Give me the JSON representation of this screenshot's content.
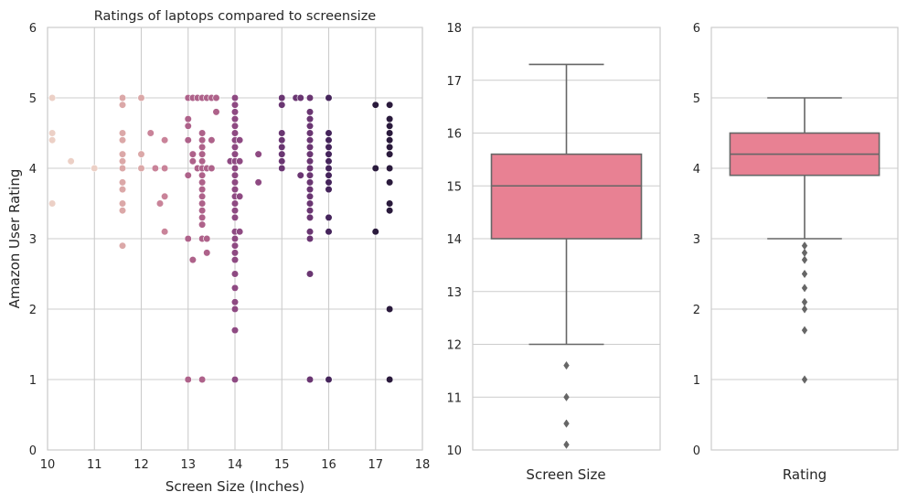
{
  "chart_data": [
    {
      "type": "scatter",
      "title": "Ratings of laptops compared to screensize",
      "xlabel": "Screen Size (Inches)",
      "ylabel": "Amazon User Rating",
      "xlim": [
        10,
        18
      ],
      "ylim": [
        0,
        6
      ],
      "xticks": [
        "10",
        "11",
        "12",
        "13",
        "14",
        "15",
        "16",
        "17",
        "18"
      ],
      "yticks": [
        "0",
        "1",
        "2",
        "3",
        "4",
        "5",
        "6"
      ],
      "grid": true,
      "hue_colors": [
        "#ecd0c6",
        "#dba8a8",
        "#c98399",
        "#ae628a",
        "#8e4a82",
        "#6a3672",
        "#45245b",
        "#2a1a3c"
      ],
      "points": [
        {
          "x": 10.1,
          "y": 5.0,
          "c": 0
        },
        {
          "x": 10.1,
          "y": 4.5,
          "c": 0
        },
        {
          "x": 10.1,
          "y": 4.4,
          "c": 0
        },
        {
          "x": 10.1,
          "y": 3.5,
          "c": 0
        },
        {
          "x": 10.5,
          "y": 4.1,
          "c": 0
        },
        {
          "x": 11.0,
          "y": 4.0,
          "c": 0
        },
        {
          "x": 11.6,
          "y": 5.0,
          "c": 1
        },
        {
          "x": 11.6,
          "y": 4.9,
          "c": 1
        },
        {
          "x": 11.6,
          "y": 4.5,
          "c": 1
        },
        {
          "x": 11.6,
          "y": 4.4,
          "c": 1
        },
        {
          "x": 11.6,
          "y": 4.2,
          "c": 1
        },
        {
          "x": 11.6,
          "y": 4.1,
          "c": 1
        },
        {
          "x": 11.6,
          "y": 4.0,
          "c": 1
        },
        {
          "x": 11.6,
          "y": 3.8,
          "c": 1
        },
        {
          "x": 11.6,
          "y": 3.7,
          "c": 1
        },
        {
          "x": 11.6,
          "y": 3.5,
          "c": 1
        },
        {
          "x": 11.6,
          "y": 3.4,
          "c": 1
        },
        {
          "x": 11.6,
          "y": 2.9,
          "c": 1
        },
        {
          "x": 12.0,
          "y": 5.0,
          "c": 1
        },
        {
          "x": 12.0,
          "y": 4.2,
          "c": 1
        },
        {
          "x": 12.0,
          "y": 4.0,
          "c": 1
        },
        {
          "x": 12.2,
          "y": 4.5,
          "c": 2
        },
        {
          "x": 12.3,
          "y": 4.0,
          "c": 2
        },
        {
          "x": 12.4,
          "y": 3.5,
          "c": 2
        },
        {
          "x": 12.5,
          "y": 4.4,
          "c": 2
        },
        {
          "x": 12.5,
          "y": 4.0,
          "c": 2
        },
        {
          "x": 12.5,
          "y": 3.6,
          "c": 2
        },
        {
          "x": 12.5,
          "y": 3.1,
          "c": 2
        },
        {
          "x": 13.0,
          "y": 5.0,
          "c": 3
        },
        {
          "x": 13.0,
          "y": 4.7,
          "c": 3
        },
        {
          "x": 13.0,
          "y": 4.6,
          "c": 3
        },
        {
          "x": 13.0,
          "y": 4.4,
          "c": 3
        },
        {
          "x": 13.0,
          "y": 3.9,
          "c": 3
        },
        {
          "x": 13.0,
          "y": 3.0,
          "c": 3
        },
        {
          "x": 13.0,
          "y": 1.0,
          "c": 3
        },
        {
          "x": 13.1,
          "y": 5.0,
          "c": 3
        },
        {
          "x": 13.1,
          "y": 4.2,
          "c": 3
        },
        {
          "x": 13.1,
          "y": 4.1,
          "c": 3
        },
        {
          "x": 13.1,
          "y": 2.7,
          "c": 3
        },
        {
          "x": 13.2,
          "y": 5.0,
          "c": 3
        },
        {
          "x": 13.2,
          "y": 4.0,
          "c": 3
        },
        {
          "x": 13.3,
          "y": 5.0,
          "c": 3
        },
        {
          "x": 13.3,
          "y": 4.5,
          "c": 3
        },
        {
          "x": 13.3,
          "y": 4.4,
          "c": 3
        },
        {
          "x": 13.3,
          "y": 4.3,
          "c": 3
        },
        {
          "x": 13.3,
          "y": 4.2,
          "c": 3
        },
        {
          "x": 13.3,
          "y": 4.1,
          "c": 3
        },
        {
          "x": 13.3,
          "y": 4.0,
          "c": 3
        },
        {
          "x": 13.3,
          "y": 3.9,
          "c": 3
        },
        {
          "x": 13.3,
          "y": 3.8,
          "c": 3
        },
        {
          "x": 13.3,
          "y": 3.7,
          "c": 3
        },
        {
          "x": 13.3,
          "y": 3.6,
          "c": 3
        },
        {
          "x": 13.3,
          "y": 3.5,
          "c": 3
        },
        {
          "x": 13.3,
          "y": 3.4,
          "c": 3
        },
        {
          "x": 13.3,
          "y": 3.3,
          "c": 3
        },
        {
          "x": 13.3,
          "y": 3.2,
          "c": 3
        },
        {
          "x": 13.3,
          "y": 3.0,
          "c": 3
        },
        {
          "x": 13.3,
          "y": 1.0,
          "c": 3
        },
        {
          "x": 13.4,
          "y": 5.0,
          "c": 3
        },
        {
          "x": 13.4,
          "y": 4.0,
          "c": 3
        },
        {
          "x": 13.4,
          "y": 3.0,
          "c": 3
        },
        {
          "x": 13.4,
          "y": 2.8,
          "c": 3
        },
        {
          "x": 13.5,
          "y": 5.0,
          "c": 3
        },
        {
          "x": 13.5,
          "y": 4.4,
          "c": 3
        },
        {
          "x": 13.5,
          "y": 4.0,
          "c": 3
        },
        {
          "x": 13.6,
          "y": 5.0,
          "c": 3
        },
        {
          "x": 13.6,
          "y": 4.8,
          "c": 3
        },
        {
          "x": 13.9,
          "y": 4.1,
          "c": 4
        },
        {
          "x": 14.0,
          "y": 5.0,
          "c": 4
        },
        {
          "x": 14.0,
          "y": 4.9,
          "c": 4
        },
        {
          "x": 14.0,
          "y": 4.8,
          "c": 4
        },
        {
          "x": 14.0,
          "y": 4.7,
          "c": 4
        },
        {
          "x": 14.0,
          "y": 4.6,
          "c": 4
        },
        {
          "x": 14.0,
          "y": 4.5,
          "c": 4
        },
        {
          "x": 14.0,
          "y": 4.4,
          "c": 4
        },
        {
          "x": 14.0,
          "y": 4.3,
          "c": 4
        },
        {
          "x": 14.0,
          "y": 4.2,
          "c": 4
        },
        {
          "x": 14.0,
          "y": 4.1,
          "c": 4
        },
        {
          "x": 14.0,
          "y": 4.0,
          "c": 4
        },
        {
          "x": 14.0,
          "y": 3.9,
          "c": 4
        },
        {
          "x": 14.0,
          "y": 3.8,
          "c": 4
        },
        {
          "x": 14.0,
          "y": 3.7,
          "c": 4
        },
        {
          "x": 14.0,
          "y": 3.6,
          "c": 4
        },
        {
          "x": 14.0,
          "y": 3.5,
          "c": 4
        },
        {
          "x": 14.0,
          "y": 3.4,
          "c": 4
        },
        {
          "x": 14.0,
          "y": 3.3,
          "c": 4
        },
        {
          "x": 14.0,
          "y": 3.1,
          "c": 4
        },
        {
          "x": 14.0,
          "y": 3.0,
          "c": 4
        },
        {
          "x": 14.0,
          "y": 2.9,
          "c": 4
        },
        {
          "x": 14.0,
          "y": 2.8,
          "c": 4
        },
        {
          "x": 14.0,
          "y": 2.7,
          "c": 4
        },
        {
          "x": 14.0,
          "y": 2.5,
          "c": 4
        },
        {
          "x": 14.0,
          "y": 2.3,
          "c": 4
        },
        {
          "x": 14.0,
          "y": 2.1,
          "c": 4
        },
        {
          "x": 14.0,
          "y": 2.0,
          "c": 4
        },
        {
          "x": 14.0,
          "y": 1.7,
          "c": 4
        },
        {
          "x": 14.0,
          "y": 1.0,
          "c": 4
        },
        {
          "x": 14.1,
          "y": 4.4,
          "c": 4
        },
        {
          "x": 14.1,
          "y": 4.1,
          "c": 4
        },
        {
          "x": 14.1,
          "y": 3.6,
          "c": 4
        },
        {
          "x": 14.1,
          "y": 3.1,
          "c": 4
        },
        {
          "x": 14.5,
          "y": 4.2,
          "c": 4
        },
        {
          "x": 14.5,
          "y": 3.8,
          "c": 4
        },
        {
          "x": 15.0,
          "y": 5.0,
          "c": 5
        },
        {
          "x": 15.0,
          "y": 4.9,
          "c": 5
        },
        {
          "x": 15.0,
          "y": 4.5,
          "c": 5
        },
        {
          "x": 15.0,
          "y": 4.4,
          "c": 5
        },
        {
          "x": 15.0,
          "y": 4.3,
          "c": 5
        },
        {
          "x": 15.0,
          "y": 4.2,
          "c": 5
        },
        {
          "x": 15.0,
          "y": 4.1,
          "c": 5
        },
        {
          "x": 15.0,
          "y": 4.0,
          "c": 5
        },
        {
          "x": 15.3,
          "y": 5.0,
          "c": 5
        },
        {
          "x": 15.4,
          "y": 5.0,
          "c": 5
        },
        {
          "x": 15.4,
          "y": 3.9,
          "c": 5
        },
        {
          "x": 15.6,
          "y": 5.0,
          "c": 5
        },
        {
          "x": 15.6,
          "y": 4.8,
          "c": 5
        },
        {
          "x": 15.6,
          "y": 4.7,
          "c": 5
        },
        {
          "x": 15.6,
          "y": 4.6,
          "c": 5
        },
        {
          "x": 15.6,
          "y": 4.5,
          "c": 5
        },
        {
          "x": 15.6,
          "y": 4.4,
          "c": 5
        },
        {
          "x": 15.6,
          "y": 4.3,
          "c": 5
        },
        {
          "x": 15.6,
          "y": 4.2,
          "c": 5
        },
        {
          "x": 15.6,
          "y": 4.1,
          "c": 5
        },
        {
          "x": 15.6,
          "y": 4.0,
          "c": 5
        },
        {
          "x": 15.6,
          "y": 3.9,
          "c": 5
        },
        {
          "x": 15.6,
          "y": 3.8,
          "c": 5
        },
        {
          "x": 15.6,
          "y": 3.7,
          "c": 5
        },
        {
          "x": 15.6,
          "y": 3.6,
          "c": 5
        },
        {
          "x": 15.6,
          "y": 3.5,
          "c": 5
        },
        {
          "x": 15.6,
          "y": 3.4,
          "c": 5
        },
        {
          "x": 15.6,
          "y": 3.3,
          "c": 5
        },
        {
          "x": 15.6,
          "y": 3.1,
          "c": 5
        },
        {
          "x": 15.6,
          "y": 3.0,
          "c": 5
        },
        {
          "x": 15.6,
          "y": 2.5,
          "c": 5
        },
        {
          "x": 15.6,
          "y": 1.0,
          "c": 5
        },
        {
          "x": 16.0,
          "y": 5.0,
          "c": 6
        },
        {
          "x": 16.0,
          "y": 4.5,
          "c": 6
        },
        {
          "x": 16.0,
          "y": 4.4,
          "c": 6
        },
        {
          "x": 16.0,
          "y": 4.3,
          "c": 6
        },
        {
          "x": 16.0,
          "y": 4.2,
          "c": 6
        },
        {
          "x": 16.0,
          "y": 4.1,
          "c": 6
        },
        {
          "x": 16.0,
          "y": 4.0,
          "c": 6
        },
        {
          "x": 16.0,
          "y": 3.9,
          "c": 6
        },
        {
          "x": 16.0,
          "y": 3.8,
          "c": 6
        },
        {
          "x": 16.0,
          "y": 3.7,
          "c": 6
        },
        {
          "x": 16.0,
          "y": 3.3,
          "c": 6
        },
        {
          "x": 16.0,
          "y": 3.1,
          "c": 6
        },
        {
          "x": 16.0,
          "y": 1.0,
          "c": 6
        },
        {
          "x": 17.0,
          "y": 4.9,
          "c": 7
        },
        {
          "x": 17.0,
          "y": 4.0,
          "c": 7
        },
        {
          "x": 17.0,
          "y": 3.1,
          "c": 7
        },
        {
          "x": 17.3,
          "y": 4.9,
          "c": 7
        },
        {
          "x": 17.3,
          "y": 4.7,
          "c": 7
        },
        {
          "x": 17.3,
          "y": 4.6,
          "c": 7
        },
        {
          "x": 17.3,
          "y": 4.5,
          "c": 7
        },
        {
          "x": 17.3,
          "y": 4.4,
          "c": 7
        },
        {
          "x": 17.3,
          "y": 4.3,
          "c": 7
        },
        {
          "x": 17.3,
          "y": 4.2,
          "c": 7
        },
        {
          "x": 17.3,
          "y": 4.0,
          "c": 7
        },
        {
          "x": 17.3,
          "y": 3.8,
          "c": 7
        },
        {
          "x": 17.3,
          "y": 3.5,
          "c": 7
        },
        {
          "x": 17.3,
          "y": 3.4,
          "c": 7
        },
        {
          "x": 17.3,
          "y": 2.0,
          "c": 7
        },
        {
          "x": 17.3,
          "y": 1.0,
          "c": 7
        }
      ]
    },
    {
      "type": "box",
      "xlabel": "Screen Size",
      "ylim": [
        10,
        18
      ],
      "yticks": [
        "10",
        "11",
        "12",
        "13",
        "14",
        "15",
        "16",
        "17",
        "18"
      ],
      "grid": true,
      "box_color": "#e88193",
      "line_color": "#666666",
      "whisker_low": 12.0,
      "q1": 14.0,
      "median": 15.0,
      "q3": 15.6,
      "whisker_high": 17.3,
      "outliers": [
        11.6,
        11.0,
        10.5,
        10.1
      ]
    },
    {
      "type": "box",
      "xlabel": "Rating",
      "ylim": [
        0,
        6
      ],
      "yticks": [
        "0",
        "1",
        "2",
        "3",
        "4",
        "5",
        "6"
      ],
      "grid": true,
      "box_color": "#e88193",
      "line_color": "#666666",
      "whisker_low": 3.0,
      "q1": 3.9,
      "median": 4.2,
      "q3": 4.5,
      "whisker_high": 5.0,
      "outliers": [
        2.9,
        2.8,
        2.7,
        2.5,
        2.3,
        2.1,
        2.0,
        1.7,
        1.0
      ]
    }
  ]
}
